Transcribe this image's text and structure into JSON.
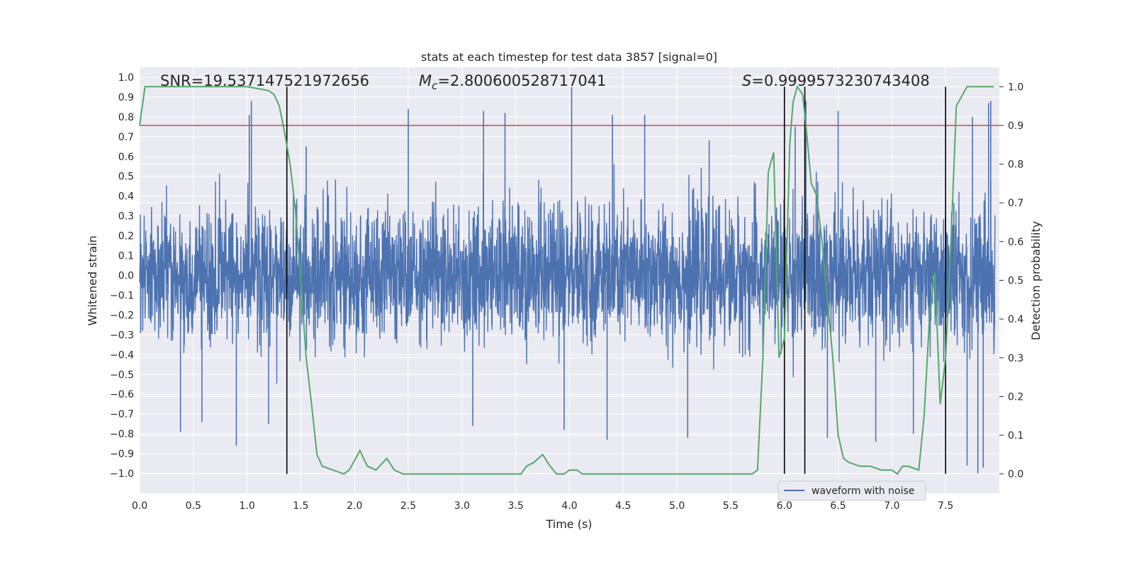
{
  "chart_data": {
    "type": "line",
    "title": "stats at each timestep for test data 3857 [signal=0]",
    "xlabel": "Time (s)",
    "ylabel": "Whitened strain",
    "y2label": "Detection probability",
    "xlim": [
      0.0,
      8.0
    ],
    "ylim": [
      -1.1,
      1.05
    ],
    "y2lim": [
      -0.05,
      1.05
    ],
    "xticks": [
      "0.0",
      "0.5",
      "1.0",
      "1.5",
      "2.0",
      "2.5",
      "3.0",
      "3.5",
      "4.0",
      "4.5",
      "5.0",
      "5.5",
      "6.0",
      "6.5",
      "7.0",
      "7.5"
    ],
    "yticks": [
      "−1.0",
      "−0.9",
      "−0.8",
      "−0.7",
      "−0.6",
      "−0.5",
      "−0.4",
      "−0.3",
      "−0.2",
      "−0.1",
      "0.0",
      "0.1",
      "0.2",
      "0.3",
      "0.4",
      "0.5",
      "0.6",
      "0.7",
      "0.8",
      "0.9",
      "1.0"
    ],
    "y2ticks": [
      "0.0",
      "0.1",
      "0.2",
      "0.3",
      "0.4",
      "0.5",
      "0.6",
      "0.7",
      "0.8",
      "0.9",
      "1.0"
    ],
    "grid": true,
    "legend_position": "bottom-right",
    "annotations": {
      "snr": "SNR=19.537147521972656",
      "mc_symbol": "M",
      "mc_sub": "c",
      "mc_value": "=2.800600528717041",
      "s_symbol": "S",
      "s_value": "=0.9999573230743408"
    },
    "series": [
      {
        "name": "waveform with noise",
        "color": "#4c72b0",
        "kind": "noise",
        "envelope": [
          0.58,
          -0.6
        ],
        "peaks": [
          [
            0.38,
            -0.79
          ],
          [
            0.58,
            -0.74
          ],
          [
            1.02,
            0.81
          ],
          [
            1.04,
            0.88
          ],
          [
            0.9,
            -0.86
          ],
          [
            1.2,
            -0.75
          ],
          [
            2.5,
            0.84
          ],
          [
            3.1,
            -0.76
          ],
          [
            3.2,
            0.83
          ],
          [
            3.4,
            0.82
          ],
          [
            3.95,
            -0.78
          ],
          [
            4.02,
            0.95
          ],
          [
            4.4,
            0.81
          ],
          [
            4.7,
            0.81
          ],
          [
            4.35,
            -0.83
          ],
          [
            5.1,
            -0.82
          ],
          [
            6.2,
            0.88
          ],
          [
            6.4,
            -0.82
          ],
          [
            6.5,
            0.83
          ],
          [
            6.85,
            -0.84
          ],
          [
            7.2,
            -0.8
          ],
          [
            7.7,
            -0.96
          ],
          [
            7.75,
            0.8
          ],
          [
            7.8,
            -1.0
          ],
          [
            7.9,
            0.87
          ],
          [
            7.92,
            0.88
          ],
          [
            7.85,
            -0.97
          ],
          [
            1.55,
            0.65
          ],
          [
            5.3,
            0.68
          ],
          [
            6.1,
            0.75
          ]
        ]
      },
      {
        "name": "",
        "color": "#55a868",
        "kind": "probability",
        "x": [
          0.0,
          0.05,
          0.3,
          0.6,
          1.0,
          1.2,
          1.25,
          1.3,
          1.35,
          1.4,
          1.45,
          1.5,
          1.55,
          1.6,
          1.65,
          1.7,
          1.8,
          1.9,
          1.95,
          2.05,
          2.12,
          2.2,
          2.3,
          2.37,
          2.45,
          2.6,
          3.0,
          3.2,
          3.4,
          3.55,
          3.6,
          3.67,
          3.75,
          3.82,
          3.88,
          3.95,
          4.0,
          4.07,
          4.12,
          4.2,
          4.5,
          5.0,
          5.2,
          5.5,
          5.7,
          5.75,
          5.8,
          5.85,
          5.9,
          5.95,
          6.0,
          6.05,
          6.08,
          6.12,
          6.17,
          6.2,
          6.25,
          6.3,
          6.35,
          6.4,
          6.45,
          6.5,
          6.55,
          6.6,
          6.7,
          6.8,
          6.9,
          7.0,
          7.05,
          7.1,
          7.15,
          7.25,
          7.3,
          7.35,
          7.4,
          7.45,
          7.5,
          7.55,
          7.6,
          7.7,
          7.8,
          7.95
        ],
        "y": [
          0.9,
          1.0,
          1.0,
          1.0,
          1.0,
          0.99,
          0.98,
          0.95,
          0.88,
          0.8,
          0.68,
          0.5,
          0.3,
          0.18,
          0.05,
          0.02,
          0.01,
          0.0,
          0.01,
          0.06,
          0.02,
          0.01,
          0.04,
          0.01,
          0.0,
          0.0,
          0.0,
          0.0,
          0.0,
          0.0,
          0.02,
          0.03,
          0.05,
          0.02,
          0.0,
          0.0,
          0.01,
          0.01,
          0.0,
          0.0,
          0.0,
          0.0,
          0.0,
          0.0,
          0.0,
          0.01,
          0.3,
          0.78,
          0.83,
          0.3,
          0.35,
          0.85,
          0.96,
          1.0,
          0.98,
          0.9,
          0.75,
          0.72,
          0.6,
          0.45,
          0.3,
          0.1,
          0.04,
          0.03,
          0.02,
          0.02,
          0.01,
          0.01,
          0.0,
          0.02,
          0.02,
          0.01,
          0.15,
          0.4,
          0.52,
          0.18,
          0.3,
          0.6,
          0.95,
          1.0,
          1.0,
          1.0
        ]
      }
    ],
    "threshold_y2": 0.9,
    "threshold_color": "#c44e52",
    "vlines_x": [
      1.37,
      6.0,
      6.19,
      7.5
    ],
    "vline_color": "#000000"
  }
}
